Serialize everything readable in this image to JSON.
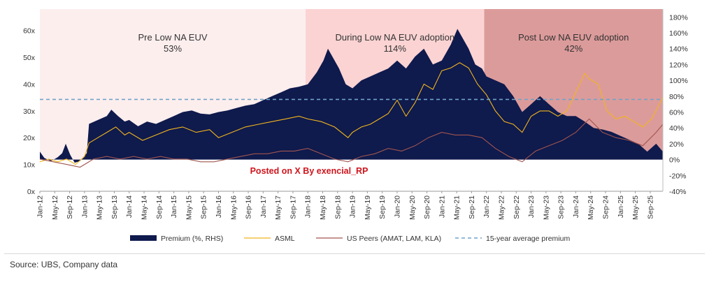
{
  "chart_data": {
    "type": "area+line",
    "title": "",
    "left_axis": {
      "ticks": [
        "0x",
        "10x",
        "20x",
        "30x",
        "40x",
        "50x",
        "60x"
      ],
      "ylim": [
        0,
        68
      ]
    },
    "right_axis": {
      "label": "Premium (%, RHS)",
      "ticks": [
        "-40%",
        "-20%",
        "0%",
        "20%",
        "40%",
        "60%",
        "80%",
        "100%",
        "120%",
        "140%",
        "160%",
        "180%"
      ],
      "ylim": [
        -40,
        190
      ]
    },
    "x_range": [
      2012.0,
      2025.95
    ],
    "x_ticks": [
      "Jan-12",
      "May-12",
      "Sep-12",
      "Jan-13",
      "May-13",
      "Sep-13",
      "Jan-14",
      "May-14",
      "Sep-14",
      "Jan-15",
      "May-15",
      "Sep-15",
      "Jan-16",
      "May-16",
      "Sep-16",
      "Jan-17",
      "May-17",
      "Sep-17",
      "Jan-18",
      "May-18",
      "Sep-18",
      "Jan-19",
      "May-19",
      "Sep-19",
      "Jan-20",
      "May-20",
      "Sep-20",
      "Jan-21",
      "May-21",
      "Sep-21",
      "Jan-22",
      "May-22",
      "Sep-22",
      "Jan-23",
      "May-23",
      "Sep-23",
      "Jan-24",
      "May-24",
      "Sep-24",
      "Jan-25",
      "May-25",
      "Sep-25"
    ],
    "regions": [
      {
        "name": "Pre Low NA EUV",
        "value": "53%",
        "x_start": 2012.0,
        "x_end": 2017.95,
        "color": "#fdeeee"
      },
      {
        "name": "During Low NA EUV adoption",
        "value": "114%",
        "x_start": 2017.95,
        "x_end": 2021.95,
        "color": "#fbd3d3"
      },
      {
        "name": "Post Low NA EUV adoption",
        "value": "42%",
        "x_start": 2021.95,
        "x_end": 2025.95,
        "color": "#dc9b9b"
      }
    ],
    "series": [
      {
        "name": "Premium (%, RHS)",
        "style": "area",
        "axis": "right",
        "color": "#0f1a4d",
        "points": [
          [
            2012.0,
            10
          ],
          [
            2012.1,
            2
          ],
          [
            2012.25,
            -2
          ],
          [
            2012.4,
            3
          ],
          [
            2012.5,
            8
          ],
          [
            2012.58,
            20
          ],
          [
            2012.68,
            6
          ],
          [
            2012.78,
            -4
          ],
          [
            2012.9,
            -2
          ],
          [
            2013.0,
            5
          ],
          [
            2013.05,
            8
          ],
          [
            2013.1,
            45
          ],
          [
            2013.3,
            50
          ],
          [
            2013.5,
            55
          ],
          [
            2013.6,
            63
          ],
          [
            2013.75,
            55
          ],
          [
            2013.9,
            48
          ],
          [
            2014.0,
            50
          ],
          [
            2014.2,
            42
          ],
          [
            2014.4,
            48
          ],
          [
            2014.6,
            45
          ],
          [
            2014.8,
            50
          ],
          [
            2015.0,
            55
          ],
          [
            2015.2,
            60
          ],
          [
            2015.4,
            62
          ],
          [
            2015.6,
            58
          ],
          [
            2015.8,
            57
          ],
          [
            2016.0,
            60
          ],
          [
            2016.2,
            62
          ],
          [
            2016.4,
            65
          ],
          [
            2016.6,
            68
          ],
          [
            2016.8,
            70
          ],
          [
            2017.0,
            75
          ],
          [
            2017.2,
            80
          ],
          [
            2017.4,
            85
          ],
          [
            2017.6,
            90
          ],
          [
            2017.8,
            92
          ],
          [
            2018.0,
            95
          ],
          [
            2018.2,
            110
          ],
          [
            2018.35,
            125
          ],
          [
            2018.45,
            140
          ],
          [
            2018.55,
            130
          ],
          [
            2018.7,
            115
          ],
          [
            2018.85,
            95
          ],
          [
            2019.0,
            90
          ],
          [
            2019.2,
            100
          ],
          [
            2019.4,
            105
          ],
          [
            2019.6,
            110
          ],
          [
            2019.8,
            115
          ],
          [
            2020.0,
            125
          ],
          [
            2020.2,
            115
          ],
          [
            2020.4,
            130
          ],
          [
            2020.6,
            140
          ],
          [
            2020.8,
            120
          ],
          [
            2021.0,
            125
          ],
          [
            2021.2,
            145
          ],
          [
            2021.35,
            165
          ],
          [
            2021.45,
            155
          ],
          [
            2021.6,
            140
          ],
          [
            2021.75,
            120
          ],
          [
            2021.9,
            115
          ],
          [
            2022.0,
            105
          ],
          [
            2022.2,
            100
          ],
          [
            2022.4,
            95
          ],
          [
            2022.6,
            80
          ],
          [
            2022.8,
            60
          ],
          [
            2023.0,
            70
          ],
          [
            2023.2,
            80
          ],
          [
            2023.4,
            70
          ],
          [
            2023.6,
            60
          ],
          [
            2023.8,
            55
          ],
          [
            2024.0,
            55
          ],
          [
            2024.2,
            48
          ],
          [
            2024.4,
            40
          ],
          [
            2024.6,
            38
          ],
          [
            2024.8,
            35
          ],
          [
            2025.0,
            30
          ],
          [
            2025.2,
            25
          ],
          [
            2025.4,
            20
          ],
          [
            2025.6,
            10
          ],
          [
            2025.8,
            20
          ],
          [
            2025.95,
            10
          ]
        ]
      },
      {
        "name": "ASML",
        "style": "line",
        "axis": "left",
        "color": "#f1b51c",
        "points": [
          [
            2012.0,
            11
          ],
          [
            2012.2,
            12
          ],
          [
            2012.4,
            11
          ],
          [
            2012.6,
            12
          ],
          [
            2012.8,
            10
          ],
          [
            2013.0,
            13
          ],
          [
            2013.1,
            18
          ],
          [
            2013.3,
            20
          ],
          [
            2013.5,
            22
          ],
          [
            2013.7,
            24
          ],
          [
            2013.9,
            21
          ],
          [
            2014.0,
            22
          ],
          [
            2014.3,
            19
          ],
          [
            2014.6,
            21
          ],
          [
            2014.9,
            23
          ],
          [
            2015.2,
            24
          ],
          [
            2015.5,
            22
          ],
          [
            2015.8,
            23
          ],
          [
            2016.0,
            20
          ],
          [
            2016.3,
            22
          ],
          [
            2016.6,
            24
          ],
          [
            2016.9,
            25
          ],
          [
            2017.2,
            26
          ],
          [
            2017.5,
            27
          ],
          [
            2017.8,
            28
          ],
          [
            2018.0,
            27
          ],
          [
            2018.3,
            26
          ],
          [
            2018.6,
            24
          ],
          [
            2018.9,
            20
          ],
          [
            2019.0,
            22
          ],
          [
            2019.2,
            24
          ],
          [
            2019.4,
            25
          ],
          [
            2019.6,
            27
          ],
          [
            2019.8,
            29
          ],
          [
            2020.0,
            34
          ],
          [
            2020.2,
            28
          ],
          [
            2020.4,
            33
          ],
          [
            2020.6,
            40
          ],
          [
            2020.8,
            38
          ],
          [
            2021.0,
            45
          ],
          [
            2021.2,
            46
          ],
          [
            2021.4,
            48
          ],
          [
            2021.6,
            46
          ],
          [
            2021.8,
            40
          ],
          [
            2022.0,
            36
          ],
          [
            2022.2,
            30
          ],
          [
            2022.4,
            26
          ],
          [
            2022.6,
            25
          ],
          [
            2022.8,
            22
          ],
          [
            2023.0,
            28
          ],
          [
            2023.2,
            30
          ],
          [
            2023.4,
            30
          ],
          [
            2023.6,
            28
          ],
          [
            2023.8,
            30
          ],
          [
            2024.0,
            37
          ],
          [
            2024.2,
            44
          ],
          [
            2024.3,
            42
          ],
          [
            2024.5,
            40
          ],
          [
            2024.7,
            30
          ],
          [
            2024.9,
            27
          ],
          [
            2025.1,
            28
          ],
          [
            2025.3,
            26
          ],
          [
            2025.5,
            24
          ],
          [
            2025.7,
            27
          ],
          [
            2025.95,
            35
          ]
        ]
      },
      {
        "name": "US Peers (AMAT, LAM, KLA)",
        "style": "line",
        "axis": "left",
        "color": "#a0554f",
        "points": [
          [
            2012.0,
            12
          ],
          [
            2012.3,
            11
          ],
          [
            2012.6,
            10
          ],
          [
            2012.9,
            9
          ],
          [
            2013.2,
            12
          ],
          [
            2013.5,
            13
          ],
          [
            2013.8,
            12
          ],
          [
            2014.1,
            13
          ],
          [
            2014.4,
            12
          ],
          [
            2014.7,
            13
          ],
          [
            2015.0,
            12
          ],
          [
            2015.3,
            12
          ],
          [
            2015.6,
            11
          ],
          [
            2015.9,
            11
          ],
          [
            2016.2,
            12
          ],
          [
            2016.5,
            13
          ],
          [
            2016.8,
            14
          ],
          [
            2017.1,
            14
          ],
          [
            2017.4,
            15
          ],
          [
            2017.7,
            15
          ],
          [
            2018.0,
            16
          ],
          [
            2018.3,
            14
          ],
          [
            2018.6,
            12
          ],
          [
            2018.9,
            11
          ],
          [
            2019.2,
            13
          ],
          [
            2019.5,
            14
          ],
          [
            2019.8,
            16
          ],
          [
            2020.1,
            15
          ],
          [
            2020.4,
            17
          ],
          [
            2020.7,
            20
          ],
          [
            2021.0,
            22
          ],
          [
            2021.3,
            21
          ],
          [
            2021.6,
            21
          ],
          [
            2021.9,
            20
          ],
          [
            2022.2,
            16
          ],
          [
            2022.5,
            13
          ],
          [
            2022.8,
            11
          ],
          [
            2023.1,
            15
          ],
          [
            2023.4,
            17
          ],
          [
            2023.7,
            19
          ],
          [
            2024.0,
            22
          ],
          [
            2024.3,
            27
          ],
          [
            2024.6,
            22
          ],
          [
            2024.9,
            20
          ],
          [
            2025.2,
            19
          ],
          [
            2025.5,
            17
          ],
          [
            2025.8,
            22
          ],
          [
            2025.95,
            25
          ]
        ]
      },
      {
        "name": "15-year average premium",
        "style": "dashed",
        "axis": "right",
        "color": "#6fa3c7",
        "points": [
          [
            2012.0,
            76
          ],
          [
            2025.95,
            76
          ]
        ]
      }
    ],
    "legend": [
      "Premium (%, RHS)",
      "ASML",
      "US Peers (AMAT, LAM, KLA)",
      "15-year average premium"
    ],
    "legend_position": "bottom"
  },
  "watermark": "Posted on X By exencial_RP",
  "source": "Source: UBS, Company data"
}
